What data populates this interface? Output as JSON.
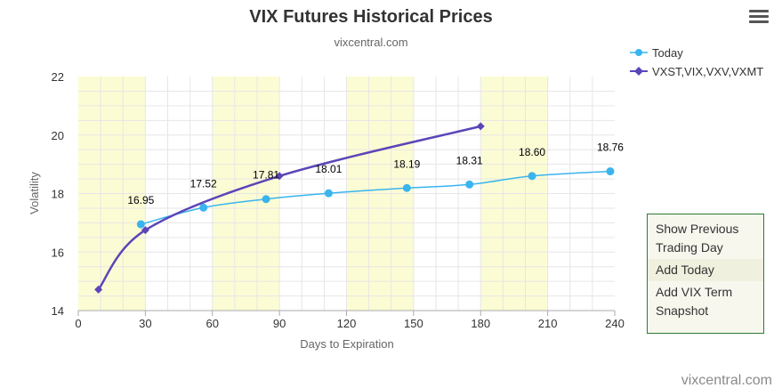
{
  "chart_data": {
    "type": "line",
    "title": "VIX Futures Historical Prices",
    "subtitle": "vixcentral.com",
    "xlabel": "Days to Expiration",
    "ylabel": "Volatility",
    "xlim": [
      0,
      240
    ],
    "ylim": [
      14,
      22
    ],
    "x_ticks": [
      0,
      30,
      60,
      90,
      120,
      150,
      180,
      210,
      240
    ],
    "y_ticks": [
      14,
      16,
      18,
      20,
      22
    ],
    "grid": true,
    "legend_position": "top-right",
    "shaded_x_bands": [
      [
        0,
        30
      ],
      [
        60,
        90
      ],
      [
        120,
        150
      ],
      [
        180,
        210
      ]
    ],
    "series": [
      {
        "name": "Today",
        "color": "#39b4ee",
        "marker": "circle",
        "x": [
          28,
          56,
          84,
          112,
          147,
          175,
          203,
          238
        ],
        "y": [
          16.95,
          17.52,
          17.81,
          18.01,
          18.19,
          18.31,
          18.6,
          18.76
        ],
        "labels": [
          "16.95",
          "17.52",
          "17.81",
          "18.01",
          "18.19",
          "18.31",
          "18.60",
          "18.76"
        ]
      },
      {
        "name": "VXST,VIX,VXV,VXMT",
        "color": "#5b45b8",
        "marker": "diamond",
        "x": [
          9,
          30,
          90,
          180
        ],
        "y": [
          14.72,
          16.75,
          18.6,
          20.3
        ]
      }
    ]
  },
  "menu": {
    "items": [
      "Show Previous Trading Day",
      "Add Today",
      "Add VIX Term Snapshot"
    ]
  },
  "credit": "vixcentral.com",
  "colors": {
    "band": "#fcfcd4",
    "grid": "#e6e6e6",
    "menu_border": "#2e7d32"
  }
}
